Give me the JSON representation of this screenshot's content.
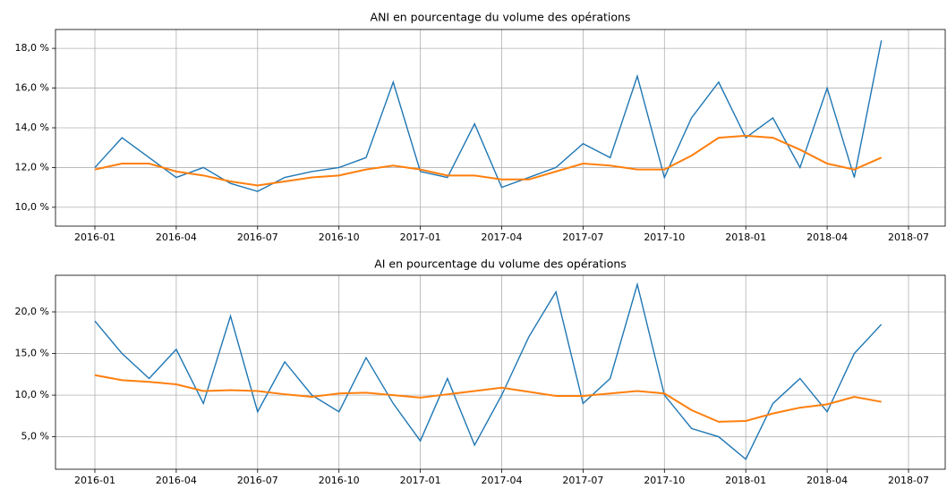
{
  "chart_data": [
    {
      "type": "line",
      "title": "ANI en pourcentage du volume des opérations",
      "x": [
        "2016-01",
        "2016-02",
        "2016-03",
        "2016-04",
        "2016-05",
        "2016-06",
        "2016-07",
        "2016-08",
        "2016-09",
        "2016-10",
        "2016-11",
        "2016-12",
        "2017-01",
        "2017-02",
        "2017-03",
        "2017-04",
        "2017-05",
        "2017-06",
        "2017-07",
        "2017-08",
        "2017-09",
        "2017-10",
        "2017-11",
        "2017-12",
        "2018-01",
        "2018-02",
        "2018-03",
        "2018-04",
        "2018-05",
        "2018-06"
      ],
      "series": [
        {
          "color": "#1f77b4",
          "values": [
            12.0,
            13.5,
            12.5,
            11.5,
            12.0,
            11.2,
            10.8,
            11.5,
            11.8,
            12.0,
            12.5,
            16.3,
            11.8,
            11.5,
            14.2,
            11.0,
            11.5,
            12.0,
            13.2,
            12.5,
            16.6,
            11.5,
            14.5,
            16.3,
            13.5,
            14.5,
            12.0,
            16.0,
            11.5,
            18.4
          ]
        },
        {
          "color": "#ff7f0e",
          "values": [
            11.9,
            12.2,
            12.2,
            11.8,
            11.6,
            11.3,
            11.1,
            11.3,
            11.5,
            11.6,
            11.9,
            12.1,
            11.9,
            11.6,
            11.6,
            11.4,
            11.4,
            11.8,
            12.2,
            12.1,
            11.9,
            11.9,
            12.6,
            13.5,
            13.6,
            13.5,
            12.9,
            12.2,
            11.9,
            12.5
          ]
        }
      ],
      "ylim": [
        9.05,
        18.95
      ],
      "yticks": [
        {
          "value": 10,
          "label": "10,0 %"
        },
        {
          "value": 12,
          "label": "12,0 %"
        },
        {
          "value": 14,
          "label": "14,0 %"
        },
        {
          "value": 16,
          "label": "16,0 %"
        },
        {
          "value": 18,
          "label": "18,0 %"
        }
      ],
      "xticks": [
        "2016-01",
        "2016-04",
        "2016-07",
        "2016-10",
        "2017-01",
        "2017-04",
        "2017-07",
        "2017-10",
        "2018-01",
        "2018-04",
        "2018-07"
      ],
      "grid": true
    },
    {
      "type": "line",
      "title": "AI en pourcentage du volume des opérations",
      "x": [
        "2016-01",
        "2016-02",
        "2016-03",
        "2016-04",
        "2016-05",
        "2016-06",
        "2016-07",
        "2016-08",
        "2016-09",
        "2016-10",
        "2016-11",
        "2016-12",
        "2017-01",
        "2017-02",
        "2017-03",
        "2017-04",
        "2017-05",
        "2017-06",
        "2017-07",
        "2017-08",
        "2017-09",
        "2017-10",
        "2017-11",
        "2017-12",
        "2018-01",
        "2018-02",
        "2018-03",
        "2018-04",
        "2018-05",
        "2018-06"
      ],
      "series": [
        {
          "color": "#1f77b4",
          "values": [
            18.9,
            15.0,
            12.0,
            15.5,
            9.0,
            19.5,
            8.0,
            14.0,
            10.0,
            8.0,
            14.5,
            9.0,
            4.5,
            12.0,
            4.0,
            10.0,
            17.0,
            22.4,
            9.0,
            12.0,
            23.3,
            10.0,
            6.0,
            5.0,
            2.3,
            9.0,
            12.0,
            8.0,
            15.0,
            18.5
          ]
        },
        {
          "color": "#ff7f0e",
          "values": [
            12.4,
            11.8,
            11.6,
            11.3,
            10.5,
            10.6,
            10.5,
            10.1,
            9.8,
            10.2,
            10.3,
            10.0,
            9.7,
            10.1,
            10.5,
            10.9,
            10.4,
            9.9,
            9.9,
            10.2,
            10.5,
            10.2,
            8.2,
            6.8,
            6.9,
            7.8,
            8.5,
            8.9,
            9.8,
            9.2
          ]
        }
      ],
      "ylim": [
        1.1,
        24.4
      ],
      "yticks": [
        {
          "value": 5,
          "label": "5,0 %"
        },
        {
          "value": 10,
          "label": "10,0 %"
        },
        {
          "value": 15,
          "label": "15,0 %"
        },
        {
          "value": 20,
          "label": "20,0 %"
        }
      ],
      "xticks": [
        "2016-01",
        "2016-04",
        "2016-07",
        "2016-10",
        "2017-01",
        "2017-04",
        "2017-07",
        "2017-10",
        "2018-01",
        "2018-04",
        "2018-07"
      ],
      "grid": true
    }
  ]
}
